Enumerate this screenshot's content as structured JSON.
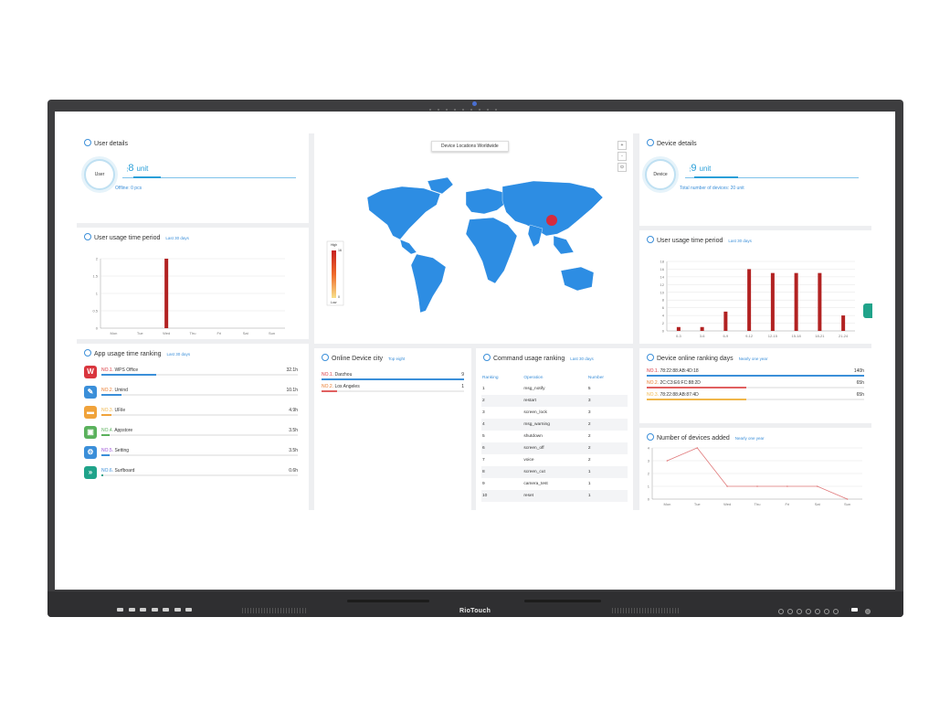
{
  "device": {
    "brand": "RioTouch"
  },
  "dashboard": {
    "user_details": {
      "title": "User details",
      "ring_label": "User",
      "value": "8",
      "unit": "unit",
      "offline": "Offline: 0 pcs"
    },
    "user_usage_left": {
      "title": "User usage time period",
      "period": "Last 30 days"
    },
    "app_ranking": {
      "title": "App usage time ranking",
      "period": "Last 30 days",
      "items": [
        {
          "rank": "NO.1.",
          "name": "WPS Office",
          "value": "32.1h",
          "fraction": 0.28,
          "icon": "wps-office-icon",
          "color": "#d9363e"
        },
        {
          "rank": "NO.2.",
          "name": "Umind",
          "value": "10.1h",
          "fraction": 0.1,
          "icon": "umind-icon",
          "color": "#3b8fd9"
        },
        {
          "rank": "NO.3.",
          "name": "UFile",
          "value": "4.9h",
          "fraction": 0.05,
          "icon": "ufile-icon",
          "color": "#f0a33b"
        },
        {
          "rank": "NO.4.",
          "name": "Appstore",
          "value": "3.5h",
          "fraction": 0.04,
          "icon": "appstore-icon",
          "color": "#5ab15c"
        },
        {
          "rank": "NO.5.",
          "name": "Setting",
          "value": "3.5h",
          "fraction": 0.04,
          "icon": "setting-icon",
          "color": "#3b8fd9"
        },
        {
          "rank": "NO.6.",
          "name": "Surfboard",
          "value": "0.6h",
          "fraction": 0.01,
          "icon": "surfboard-icon",
          "color": "#20a38a"
        }
      ]
    },
    "map": {
      "title": "Device Locations Worldwide",
      "legend_high": "High",
      "legend_low": "Low",
      "legend_max": "16",
      "legend_min": "0",
      "zoom_in": "+",
      "zoom_out": "-",
      "reset": "⊙"
    },
    "online_city": {
      "title": "Online Device city",
      "period": "Top eight",
      "rows": [
        {
          "rank": "NO.1.",
          "city": "Darzhou",
          "count": "9",
          "fraction": 1.0,
          "color": "#3b8fd9"
        },
        {
          "rank": "NO.2.",
          "city": "Los Angeles",
          "count": "1",
          "fraction": 0.11,
          "color": "#e06060"
        }
      ]
    },
    "command_ranking": {
      "title": "Command usage ranking",
      "period": "Last 30 days",
      "headers": {
        "ranking": "Ranking",
        "operation": "Operation",
        "number": "Number"
      },
      "rows": [
        {
          "ranking": "1",
          "operation": "msg_notify",
          "number": "5"
        },
        {
          "ranking": "2",
          "operation": "restart",
          "number": "3"
        },
        {
          "ranking": "3",
          "operation": "screen_lock",
          "number": "3"
        },
        {
          "ranking": "4",
          "operation": "msg_warning",
          "number": "2"
        },
        {
          "ranking": "5",
          "operation": "shutdown",
          "number": "2"
        },
        {
          "ranking": "6",
          "operation": "screen_off",
          "number": "2"
        },
        {
          "ranking": "7",
          "operation": "voice",
          "number": "2"
        },
        {
          "ranking": "8",
          "operation": "screen_cut",
          "number": "1"
        },
        {
          "ranking": "9",
          "operation": "camera_test",
          "number": "1"
        },
        {
          "ranking": "10",
          "operation": "reset",
          "number": "1"
        }
      ]
    },
    "device_details": {
      "title": "Device details",
      "ring_label": "Device",
      "value": "9",
      "unit": "unit",
      "total": "Total number of devices: 20 unit"
    },
    "user_usage_right": {
      "title": "User usage time period",
      "period": "Last 30 days"
    },
    "online_ranking_days": {
      "title": "Device online ranking days",
      "period": "Nearly one year",
      "rows": [
        {
          "rank": "NO.1.",
          "id": "78:22:88:AB:4D:18",
          "value": "140h",
          "fraction": 1.0,
          "color": "#3b8fd9"
        },
        {
          "rank": "NO.2.",
          "id": "2C:C3:E6:FC:88:2D",
          "value": "65h",
          "fraction": 0.46,
          "color": "#e06060"
        },
        {
          "rank": "NO.3.",
          "id": "78:22:88:AB:87:4D",
          "value": "65h",
          "fraction": 0.46,
          "color": "#f0b64b"
        }
      ]
    },
    "devices_added": {
      "title": "Number of devices added",
      "period": "Nearly one year"
    }
  },
  "chart_data": [
    {
      "type": "bar",
      "categories": [
        "Mon",
        "Tue",
        "Wed",
        "Thu",
        "Fri",
        "Sat",
        "Sun"
      ],
      "values": [
        0,
        0,
        2,
        0,
        0,
        0,
        0
      ],
      "ylim": [
        0,
        2
      ],
      "yticks": [
        "0",
        "0.5",
        "1",
        "1.5",
        "2"
      ],
      "color": "#b22222"
    },
    {
      "type": "bar",
      "categories": [
        "0-3",
        "3-6",
        "6-9",
        "9-12",
        "12-15",
        "15-18",
        "18-21",
        "21-24"
      ],
      "values": [
        1,
        1,
        5,
        16,
        15,
        15,
        15,
        4
      ],
      "ylim": [
        0,
        18
      ],
      "yticks": [
        "0",
        "2",
        "4",
        "6",
        "8",
        "10",
        "12",
        "14",
        "16",
        "18"
      ],
      "color": "#b22222"
    },
    {
      "type": "line",
      "categories": [
        "Mon",
        "Tue",
        "Wed",
        "Thu",
        "Fri",
        "Sat",
        "Sun"
      ],
      "values": [
        3,
        4,
        1,
        1,
        1,
        1,
        0
      ],
      "ylim": [
        0,
        4
      ],
      "yticks": [
        "0",
        "1",
        "2",
        "3",
        "4"
      ],
      "color": "#e0797a"
    }
  ]
}
